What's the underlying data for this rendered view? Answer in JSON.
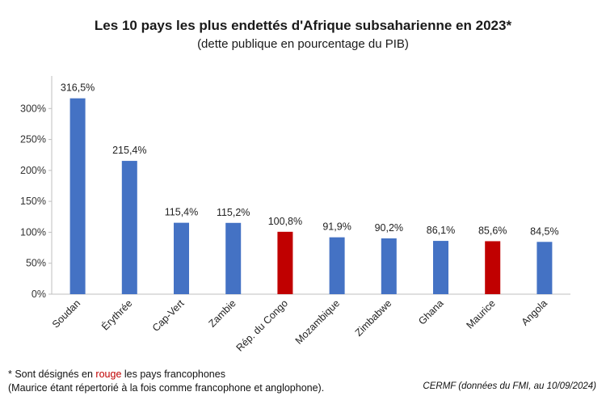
{
  "chart_data": {
    "type": "bar",
    "title": "Les 10 pays les plus endettés d'Afrique subsaharienne en 2023*",
    "subtitle": "(dette publique en pourcentage du PIB)",
    "categories": [
      "Soudan",
      "Érythrée",
      "Cap-Vert",
      "Zambie",
      "Rép. du Congo",
      "Mozambique",
      "Zimbabwe",
      "Ghana",
      "Maurice",
      "Angola"
    ],
    "values": [
      316.5,
      215.4,
      115.4,
      115.2,
      100.8,
      91.9,
      90.2,
      86.1,
      85.6,
      84.5
    ],
    "value_labels": [
      "316,5%",
      "215,4%",
      "115,4%",
      "115,2%",
      "100,8%",
      "91,9%",
      "90,2%",
      "86,1%",
      "85,6%",
      "84,5%"
    ],
    "ylim": [
      0,
      350
    ],
    "yticks": [
      0,
      50,
      100,
      150,
      200,
      250,
      300
    ],
    "ytick_labels": [
      "0%",
      "50%",
      "100%",
      "150%",
      "200%",
      "250%",
      "300%"
    ],
    "francophone": [
      false,
      false,
      false,
      false,
      true,
      false,
      false,
      false,
      true,
      false
    ],
    "colors": {
      "default": "#4472c4",
      "francophone": "#c00000"
    },
    "grid": false,
    "legend": "none"
  },
  "footnote": {
    "line1_prefix": "* Sont désignés en ",
    "line1_highlight": "rouge",
    "line1_suffix": " les pays francophones",
    "line2": "(Maurice étant répertorié à la fois comme francophone et anglophone).",
    "highlight_color": "#c00000"
  },
  "source": "CERMF (données du FMI, au 10/09/2024)"
}
